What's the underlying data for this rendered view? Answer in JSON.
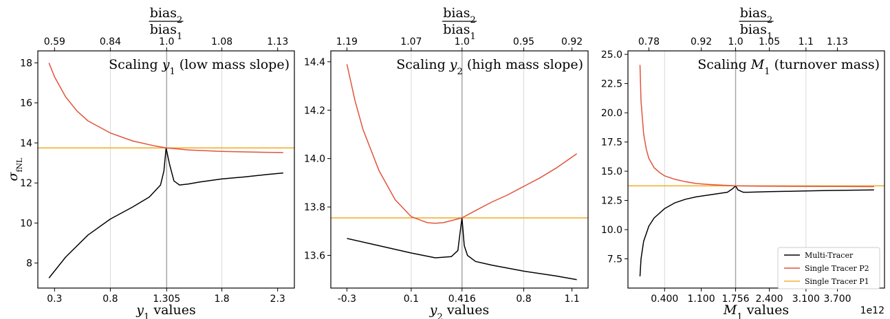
{
  "colors": {
    "multi": "#000000",
    "p2": "#e0533a",
    "p1": "#f2b134",
    "guide": "#d9d9d9",
    "ref": "#a6a6a6"
  },
  "legend": [
    "Multi-Tracer",
    "Single Tracer P2",
    "Single Tracer P1"
  ],
  "chart_data": [
    {
      "type": "line",
      "annotation": {
        "pre": "Scaling ",
        "var": "y",
        "sub": "1",
        "post": " (low mass slope)"
      },
      "xlabel": {
        "var": "y",
        "sub": "1",
        "rest": " values"
      },
      "ylabel": {
        "var": "σ",
        "sub": "fNL"
      },
      "top_label": {
        "num": "bias",
        "num_sub": "2",
        "den": "bias",
        "den_sub": "1"
      },
      "xlim": [
        0.15,
        2.45
      ],
      "ylim": [
        6.75,
        18.6
      ],
      "xticks": [
        "0.3",
        "0.8",
        "1.305",
        "1.8",
        "2.3"
      ],
      "xtick_values": [
        0.3,
        0.8,
        1.305,
        1.8,
        2.3
      ],
      "yticks": [
        "8",
        "10",
        "12",
        "14",
        "16",
        "18"
      ],
      "ytick_values": [
        8,
        10,
        12,
        14,
        16,
        18
      ],
      "top_ticks": [
        "0.59",
        "0.84",
        "1.0",
        "1.08",
        "1.13"
      ],
      "top_tick_positions": [
        0.3,
        0.8,
        1.305,
        1.8,
        2.3
      ],
      "guides": [
        0.8,
        1.8
      ],
      "ref_x": 1.305,
      "single_p1": 13.75,
      "series": [
        {
          "name": "Multi-Tracer",
          "key": "multi",
          "x": [
            0.25,
            0.4,
            0.6,
            0.8,
            1.0,
            1.15,
            1.25,
            1.28,
            1.3,
            1.33,
            1.37,
            1.42,
            1.5,
            1.6,
            1.8,
            2.0,
            2.2,
            2.35
          ],
          "y": [
            7.25,
            8.3,
            9.4,
            10.2,
            10.8,
            11.3,
            11.9,
            12.6,
            13.75,
            12.95,
            12.1,
            11.9,
            11.95,
            12.05,
            12.2,
            12.3,
            12.42,
            12.5
          ]
        },
        {
          "name": "Single Tracer P2",
          "key": "p2",
          "x": [
            0.25,
            0.3,
            0.4,
            0.5,
            0.6,
            0.8,
            1.0,
            1.2,
            1.305,
            1.5,
            1.8,
            2.1,
            2.35
          ],
          "y": [
            18.0,
            17.3,
            16.3,
            15.6,
            15.1,
            14.5,
            14.1,
            13.85,
            13.75,
            13.65,
            13.58,
            13.54,
            13.52
          ]
        }
      ]
    },
    {
      "type": "line",
      "annotation": {
        "pre": "Scaling ",
        "var": "y",
        "sub": "2",
        "post": " (high mass slope)"
      },
      "xlabel": {
        "var": "y",
        "sub": "2",
        "rest": " values"
      },
      "ylabel": null,
      "top_label": {
        "num": "bias",
        "num_sub": "2",
        "den": "bias",
        "den_sub": "1"
      },
      "xlim": [
        -0.4,
        1.2
      ],
      "ylim": [
        13.465,
        14.445
      ],
      "xticks": [
        "-0.3",
        "0.1",
        "0.416",
        "0.8",
        "1.1"
      ],
      "xtick_values": [
        -0.3,
        0.1,
        0.416,
        0.8,
        1.1
      ],
      "yticks": [
        "13.6",
        "13.8",
        "14.0",
        "14.2",
        "14.4"
      ],
      "ytick_values": [
        13.6,
        13.8,
        14.0,
        14.2,
        14.4
      ],
      "top_ticks": [
        "1.19",
        "1.07",
        "1.0",
        "0.95",
        "0.92"
      ],
      "top_tick_positions": [
        -0.3,
        0.1,
        0.416,
        0.8,
        1.1
      ],
      "guides": [
        0.1,
        0.8
      ],
      "ref_x": 0.416,
      "single_p1": 13.755,
      "series": [
        {
          "name": "Multi-Tracer",
          "key": "multi",
          "x": [
            -0.3,
            -0.1,
            0.1,
            0.25,
            0.35,
            0.39,
            0.405,
            0.416,
            0.43,
            0.45,
            0.5,
            0.6,
            0.8,
            1.0,
            1.13
          ],
          "y": [
            13.67,
            13.64,
            13.61,
            13.59,
            13.595,
            13.62,
            13.7,
            13.755,
            13.64,
            13.6,
            13.575,
            13.56,
            13.535,
            13.515,
            13.5
          ]
        },
        {
          "name": "Single Tracer P2",
          "key": "p2",
          "x": [
            -0.3,
            -0.25,
            -0.2,
            -0.1,
            0.0,
            0.1,
            0.2,
            0.25,
            0.3,
            0.416,
            0.5,
            0.6,
            0.7,
            0.8,
            0.9,
            1.0,
            1.13
          ],
          "y": [
            14.39,
            14.24,
            14.12,
            13.95,
            13.83,
            13.76,
            13.735,
            13.733,
            13.735,
            13.755,
            13.785,
            13.82,
            13.85,
            13.885,
            13.92,
            13.96,
            14.02
          ]
        }
      ]
    },
    {
      "type": "line",
      "annotation": {
        "pre": "Scaling ",
        "var": "M",
        "sub": "1",
        "post": " (turnover mass)"
      },
      "xlabel": {
        "var": "M",
        "sub": "1",
        "rest": " values"
      },
      "ylabel": null,
      "top_label": {
        "num": "bias",
        "num_sub": "2",
        "den": "bias",
        "den_sub": "1"
      },
      "offset_text": "1e12",
      "xlim": [
        -0.3,
        4.6
      ],
      "ylim": [
        5.0,
        25.3
      ],
      "xticks": [
        "0.400",
        "1.100",
        "1.756",
        "2.400",
        "3.100",
        "3.700"
      ],
      "xtick_values": [
        0.4,
        1.1,
        1.756,
        2.4,
        3.1,
        3.7
      ],
      "yticks": [
        "7.5",
        "10.0",
        "12.5",
        "15.0",
        "17.5",
        "20.0",
        "22.5",
        "25.0"
      ],
      "ytick_values": [
        7.5,
        10.0,
        12.5,
        15.0,
        17.5,
        20.0,
        22.5,
        25.0
      ],
      "top_ticks": [
        "0.78",
        "0.92",
        "1.0",
        "1.05",
        "1.1",
        "1.13"
      ],
      "top_tick_positions": [
        0.1,
        1.1,
        1.756,
        2.4,
        3.1,
        3.7
      ],
      "guides": [
        0.4,
        3.1
      ],
      "ref_x": 1.756,
      "single_p1": 13.75,
      "series": [
        {
          "name": "Multi-Tracer",
          "key": "multi",
          "x": [
            -0.07,
            -0.05,
            0.0,
            0.1,
            0.2,
            0.4,
            0.6,
            0.8,
            1.0,
            1.3,
            1.6,
            1.7,
            1.756,
            1.8,
            1.9,
            2.0,
            2.4,
            3.0,
            3.5,
            4.0,
            4.4
          ],
          "y": [
            6.0,
            7.5,
            9.0,
            10.3,
            11.0,
            11.8,
            12.3,
            12.6,
            12.8,
            13.0,
            13.2,
            13.5,
            13.75,
            13.4,
            13.2,
            13.2,
            13.25,
            13.3,
            13.35,
            13.38,
            13.4
          ]
        },
        {
          "name": "Single Tracer P2",
          "key": "p2",
          "x": [
            -0.07,
            -0.05,
            0.0,
            0.05,
            0.1,
            0.2,
            0.3,
            0.4,
            0.6,
            0.8,
            1.0,
            1.3,
            1.756,
            2.2,
            3.0,
            3.8,
            4.4
          ],
          "y": [
            24.1,
            21.0,
            18.2,
            16.9,
            16.1,
            15.3,
            14.9,
            14.6,
            14.3,
            14.1,
            13.95,
            13.85,
            13.75,
            13.72,
            13.7,
            13.69,
            13.68
          ]
        }
      ]
    }
  ]
}
